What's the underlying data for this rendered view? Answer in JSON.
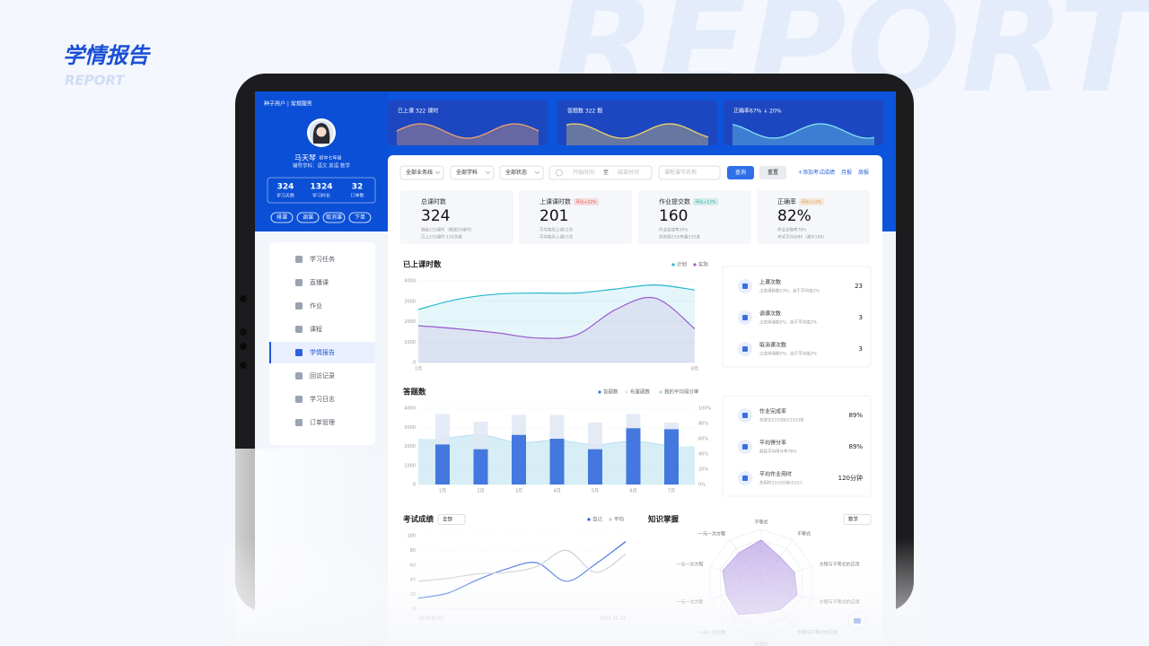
{
  "header": {
    "title": "学情报告",
    "subtitle": "REPORT",
    "watermark": "REPORT"
  },
  "profile": {
    "breadcrumb": "种子用户 | 常规服务",
    "name": "马天琴",
    "grade": "初中七年级",
    "subjects": "辅导学科：语文  英语  数学",
    "stats": [
      {
        "value": "324",
        "label": "学习天数"
      },
      {
        "value": "1324",
        "label": "学习时长"
      },
      {
        "value": "32",
        "label": "订单数"
      }
    ],
    "buttons": [
      "排课",
      "调课",
      "取消课",
      "下单"
    ]
  },
  "menu": {
    "items": [
      "学习任务",
      "直播课",
      "作业",
      "课程",
      "学情报告",
      "回访记录",
      "学习日志",
      "订单管理"
    ],
    "active_index": 4
  },
  "top_cards": [
    {
      "label": "已上课 322 课时",
      "color": "#f0a46e"
    },
    {
      "label": "答题数 322 题",
      "color": "#f2d36b"
    },
    {
      "label": "正确率67% ↓ 20%",
      "color": "#7fe6f3"
    }
  ],
  "filters": {
    "selects": [
      "全部业务线",
      "全部学科",
      "全部状态"
    ],
    "start": "开始时间",
    "to": "至",
    "end": "结束时间",
    "search": "课程课节名称",
    "query": "查询",
    "reset": "重置",
    "add": "+添加考试成绩",
    "monthly": "月报",
    "weekly": "周报"
  },
  "kpis": [
    {
      "title": "总课时数",
      "value": "324",
      "note1": "剩余233课时（赠送20课时）",
      "note2": "已上233课时 120次课"
    },
    {
      "title": "上课课时数",
      "value": "201",
      "badge": "环比+12%",
      "badge_color": "#e5534b",
      "note1": "平均每周上课12次",
      "note2": "平均每月上课23次"
    },
    {
      "title": "作业提交数",
      "value": "160",
      "badge": "环比+12%",
      "badge_color": "#1fb29f",
      "note1": "作业完成率20%",
      "note2": "总答题233/布置233道"
    },
    {
      "title": "正确率",
      "value": "82%",
      "badge": "环比+12%",
      "badge_color": "#e8952e",
      "note1": "作业正确率78%",
      "note2": "考试平均分80（满分100）"
    }
  ],
  "side_lists": [
    [
      {
        "title": "上课次数",
        "desc": "占总课程数23%，高于平均值2%",
        "value": "23"
      },
      {
        "title": "调课次数",
        "desc": "占总排课数5%，高于平均值2%",
        "value": "3"
      },
      {
        "title": "取消课次数",
        "desc": "占总排课数5%，高于平均值2%",
        "value": "3"
      }
    ],
    [
      {
        "title": "作业完成率",
        "desc": "总提交2333份/23333份",
        "value": "89%"
      },
      {
        "title": "平均得分率",
        "desc": "题目平均得分率78%",
        "value": "89%"
      },
      {
        "title": "平均作业用时",
        "desc": "总用时2333分钟/233人",
        "value": "120分钟"
      }
    ]
  ],
  "chart_data": [
    {
      "type": "line",
      "title": "已上课时数",
      "area": true,
      "grid": true,
      "categories": [
        "1月",
        null,
        null,
        null,
        null,
        null,
        null,
        "8月"
      ],
      "series": [
        {
          "name": "计划",
          "color": "#22b8cf",
          "values": [
            2600,
            3100,
            3350,
            3400,
            3400,
            3600,
            3800,
            3550
          ]
        },
        {
          "name": "实际",
          "color": "#9b59d0",
          "values": [
            1800,
            1650,
            1450,
            1200,
            1350,
            2600,
            3150,
            1650
          ]
        }
      ],
      "ylim": [
        0,
        4000
      ],
      "yticks": [
        0,
        1000,
        2000,
        3000,
        4000
      ]
    },
    {
      "type": "bar",
      "title": "答题数",
      "grid": true,
      "categories": [
        "1月",
        "2月",
        "3月",
        "4月",
        "5月",
        "6月",
        "7月"
      ],
      "series": [
        {
          "name": "答题数",
          "color": "#3b72dc",
          "values": [
            2100,
            1850,
            2600,
            2400,
            1850,
            2950,
            2900
          ]
        },
        {
          "name": "布置题数",
          "color": "#e1e8f5",
          "values": [
            3700,
            3300,
            3650,
            3650,
            3250,
            3700,
            3250
          ]
        },
        {
          "name": "我的平均得分率",
          "color": "#a6d9ec",
          "axis": "y2",
          "values": [
            60,
            65,
            55,
            58,
            52,
            57,
            50
          ]
        }
      ],
      "ylim": [
        0,
        4000
      ],
      "yticks": [
        0,
        1000,
        2000,
        3000,
        4000
      ],
      "y2lim": [
        0,
        100
      ],
      "y2ticks": [
        {
          "value": 0,
          "label": "0%"
        },
        {
          "value": 20,
          "label": "20%"
        },
        {
          "value": 40,
          "label": "40%"
        },
        {
          "value": 60,
          "label": "60%"
        },
        {
          "value": 80,
          "label": "80%"
        },
        {
          "value": 100,
          "label": "100%"
        }
      ]
    },
    {
      "type": "line",
      "title": "考试成绩",
      "filter": "全部",
      "grid": true,
      "categories": [
        "2020.01.01",
        null,
        null,
        null,
        null,
        null,
        null,
        "2021.01.23"
      ],
      "series": [
        {
          "name": "自己",
          "color": "#2b5fd9",
          "values": [
            15,
            22,
            40,
            55,
            63,
            38,
            62,
            92
          ]
        },
        {
          "name": "平均",
          "color": "#c4c9d2",
          "values": [
            38,
            42,
            48,
            50,
            58,
            80,
            50,
            75
          ]
        }
      ],
      "ylim": [
        0,
        100
      ],
      "yticks": [
        0,
        20,
        40,
        60,
        80,
        100
      ]
    },
    {
      "type": "radar",
      "title": "知识掌握",
      "filter": "数学",
      "color": "#a98ae0",
      "categories": [
        "不等式",
        "不等式",
        "方程与不等式的应用",
        "方程与不等式的应用",
        "方程与不等式的应用",
        "有理数",
        "一元一次方程",
        "一元一次方程",
        "一元一次方程",
        "一元一次方程"
      ],
      "values": [
        80,
        60,
        65,
        70,
        60,
        55,
        72,
        68,
        75,
        70
      ],
      "ylim": [
        0,
        100
      ]
    }
  ]
}
